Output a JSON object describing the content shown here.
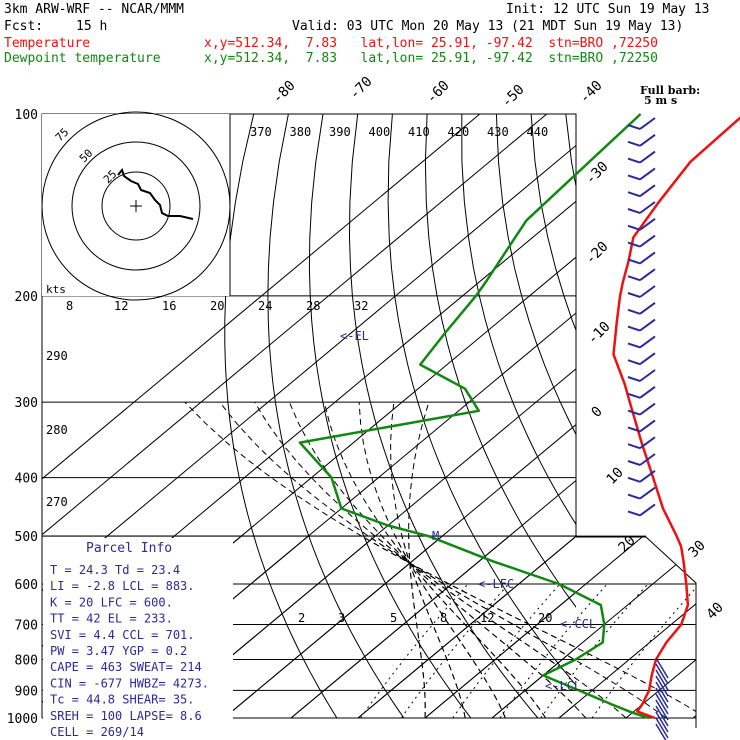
{
  "header": {
    "model": "3km ARW-WRF -- NCAR/MMM",
    "fcst_label": "Fcst:",
    "fcst_value": "15 h",
    "init": "Init: 12 UTC Sun 19 May 13",
    "valid": "Valid: 03 UTC Mon 20 May 13 (21 MDT Sun 19 May 13)",
    "temp_label": "Temperature",
    "temp_info": "x,y=512.34,  7.83   lat,lon= 25.91, -97.42  stn=BRO ,72250",
    "dew_label": "Dewpoint temperature",
    "dew_info": "x,y=512.34,  7.83   lat,lon= 25.91, -97.42  stn=BRO ,72250"
  },
  "colors": {
    "temperature": "#ee1111",
    "dewpoint": "#118811",
    "parcel": "#2a2a9a",
    "grid": "#000000",
    "header_black": "#000000"
  },
  "wind_barb_label": [
    "Full barb:",
    "5 m s"
  ],
  "chart_data": {
    "type": "line",
    "title": "",
    "xlabel": "",
    "ylabel": "",
    "pressure_levels": [
      100,
      200,
      300,
      400,
      500,
      600,
      700,
      800,
      900,
      1000
    ],
    "isotherm_labels": [
      "-80",
      "-70",
      "-60",
      "-50",
      "-40",
      "-30",
      "-20",
      "-10",
      "0",
      "10",
      "20",
      "30",
      "40"
    ],
    "theta_e_labels": [
      "370",
      "380",
      "390",
      "400",
      "410",
      "420",
      "430",
      "440"
    ],
    "mixing_ratio_labels": [
      "8",
      "12",
      "16",
      "20",
      "24",
      "28",
      "32"
    ],
    "mixing_ratio_lower_labels": [
      "2",
      "3",
      "5",
      "8",
      "12",
      "20"
    ],
    "theta_labels": [
      "290",
      "280",
      "270"
    ],
    "series": [
      {
        "name": "Temperature",
        "color": "#ee1111",
        "points": [
          [
            100,
            -70.5
          ],
          [
            120,
            -70
          ],
          [
            140,
            -67.5
          ],
          [
            160,
            -65
          ],
          [
            175,
            -61.5
          ],
          [
            190,
            -58.5
          ],
          [
            200,
            -56.5
          ],
          [
            220,
            -52.5
          ],
          [
            250,
            -47
          ],
          [
            280,
            -40
          ],
          [
            300,
            -36
          ],
          [
            350,
            -27
          ],
          [
            400,
            -19
          ],
          [
            450,
            -12
          ],
          [
            500,
            -5
          ],
          [
            520,
            -2.5
          ],
          [
            550,
            0.5
          ],
          [
            600,
            5
          ],
          [
            650,
            9
          ],
          [
            700,
            11.5
          ],
          [
            750,
            12.5
          ],
          [
            800,
            14
          ],
          [
            850,
            16.2
          ],
          [
            900,
            18.5
          ],
          [
            950,
            20
          ],
          [
            975,
            20.5
          ],
          [
            1000,
            24.3
          ]
        ]
      },
      {
        "name": "Dewpoint temperature",
        "color": "#118811",
        "points": [
          [
            100,
            -86
          ],
          [
            150,
            -84
          ],
          [
            190,
            -79
          ],
          [
            200,
            -78
          ],
          [
            230,
            -76
          ],
          [
            260,
            -74
          ],
          [
            285,
            -63
          ],
          [
            310,
            -57
          ],
          [
            350,
            -78
          ],
          [
            400,
            -67
          ],
          [
            450,
            -60
          ],
          [
            480,
            -50
          ],
          [
            500,
            -42
          ],
          [
            550,
            -28
          ],
          [
            600,
            -14
          ],
          [
            650,
            -4
          ],
          [
            700,
            0
          ],
          [
            750,
            3
          ],
          [
            800,
            2
          ],
          [
            850,
            0
          ],
          [
            900,
            8
          ],
          [
            950,
            15.5
          ],
          [
            980,
            20
          ],
          [
            1000,
            23.4
          ]
        ]
      }
    ],
    "annotations": [
      "EL",
      "M",
      "LFC",
      "CCL",
      "LCL"
    ]
  },
  "hodograph": {
    "speed_labels": [
      "75",
      "50",
      "25"
    ],
    "units": "kts"
  },
  "parcel_info": {
    "title": "Parcel  Info",
    "rows": [
      "T  =   24.3  Td =  23.4",
      "LI =   -2.8  LCL =  883.",
      "K  =     20  LFC =  600.",
      "TT =     42  EL  =  233.",
      "SVI =   4.4  CCL =  701.",
      "PW =   3.47  YGP =   0.2",
      "CAPE =  463  SWEAT=  214",
      "CIN =  -677  HWBZ= 4273.",
      "Tc =   44.8  SHEAR=  35.",
      "SREH =  100  LAPSE=  8.6",
      "CELL = 269/14"
    ]
  }
}
